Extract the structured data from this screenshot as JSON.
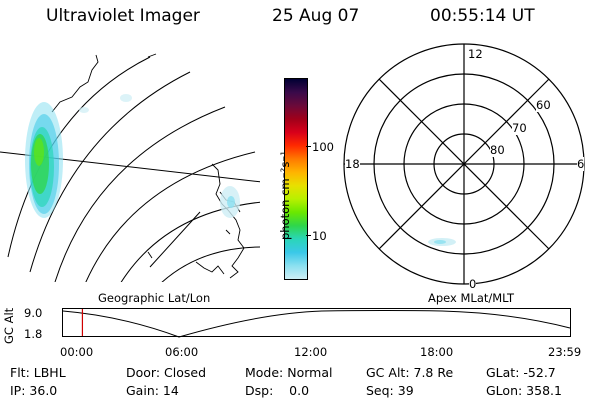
{
  "header": {
    "instrument": "Ultraviolet Imager",
    "date": "25 Aug 07",
    "time": "00:55:14 UT"
  },
  "geo_panel": {
    "label": "Geographic Lat/Lon"
  },
  "colorbar": {
    "unit_label": "photon cm⁻²s⁻¹",
    "tick_labels": [
      "100",
      "10"
    ],
    "colors": [
      "#000033",
      "#3a0a4a",
      "#6a0a3a",
      "#a0001a",
      "#d8001a",
      "#ff2a00",
      "#ff7a00",
      "#ffb400",
      "#e8e000",
      "#b8f000",
      "#6ae800",
      "#2fd64a",
      "#2ad6b8",
      "#3ac8e8",
      "#8ae0f0",
      "#cdeef5"
    ]
  },
  "polar_panel": {
    "label": "Apex MLat/MLT",
    "mlt_labels": {
      "top": "12",
      "left": "18",
      "right": "6",
      "bottom": "0"
    },
    "lat_labels": [
      "60",
      "70",
      "80"
    ]
  },
  "timeline": {
    "y_axis_label": "GC Alt",
    "y_ticks": [
      "9.0",
      "1.8"
    ],
    "x_ticks": [
      "00:00",
      "06:00",
      "12:00",
      "18:00",
      "23:59"
    ],
    "current_time_fraction": 0.0383,
    "marker_color": "#d00000"
  },
  "status": {
    "filter": "Flt: LBHL",
    "ip": "IP: 36.0",
    "door": "Door: Closed",
    "gain": "Gain: 14",
    "mode": "Mode: Normal",
    "dsp": "Dsp:    0.0",
    "gc_alt": "GC Alt: 7.8 Re",
    "seq": "Seq: 39",
    "glat": "GLat: -52.7",
    "glon": "GLon: 358.1"
  }
}
